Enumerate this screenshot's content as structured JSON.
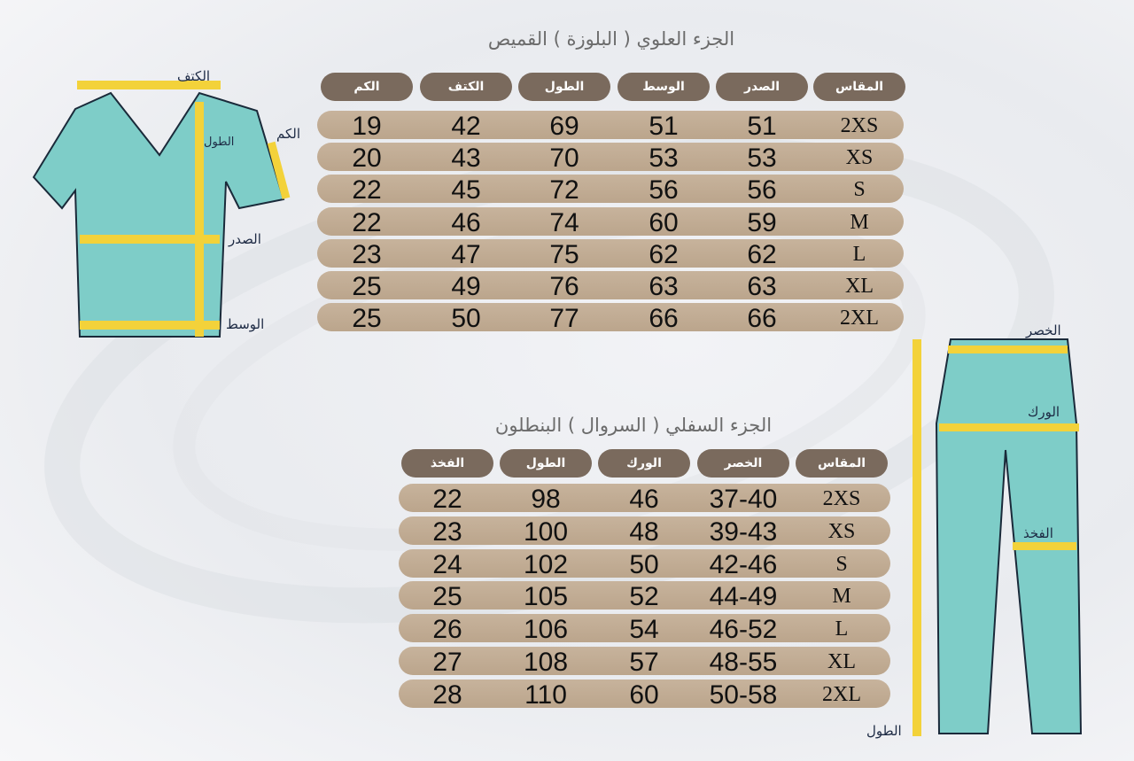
{
  "top": {
    "title": "الجزء العلوي ( البلوزة ) القميص",
    "headers": [
      "المقاس",
      "الصدر",
      "الوسط",
      "الطول",
      "الكتف",
      "الكم"
    ],
    "rows": [
      [
        "2XS",
        "51",
        "51",
        "69",
        "42",
        "19"
      ],
      [
        "XS",
        "53",
        "53",
        "70",
        "43",
        "20"
      ],
      [
        "S",
        "56",
        "56",
        "72",
        "45",
        "22"
      ],
      [
        "M",
        "59",
        "60",
        "74",
        "46",
        "22"
      ],
      [
        "L",
        "62",
        "62",
        "75",
        "47",
        "23"
      ],
      [
        "XL",
        "63",
        "63",
        "76",
        "49",
        "25"
      ],
      [
        "2XL",
        "66",
        "66",
        "77",
        "50",
        "25"
      ]
    ],
    "diagram_labels": {
      "shoulder": "الكتف",
      "sleeve": "الكم",
      "length": "الطول",
      "chest": "الصدر",
      "waist": "الوسط"
    }
  },
  "bottom": {
    "title": "الجزء السفلي ( السروال ) البنطلون",
    "headers": [
      "المقاس",
      "الخصر",
      "الورك",
      "الطول",
      "الفخذ"
    ],
    "rows": [
      [
        "2XS",
        "37-40",
        "46",
        "98",
        "22"
      ],
      [
        "XS",
        "39-43",
        "48",
        "100",
        "23"
      ],
      [
        "S",
        "42-46",
        "50",
        "102",
        "24"
      ],
      [
        "M",
        "44-49",
        "52",
        "105",
        "25"
      ],
      [
        "L",
        "46-52",
        "54",
        "106",
        "26"
      ],
      [
        "XL",
        "48-55",
        "57",
        "108",
        "27"
      ],
      [
        "2XL",
        "50-58",
        "60",
        "110",
        "28"
      ]
    ],
    "diagram_labels": {
      "waist": "الخصر",
      "hip": "الورك",
      "thigh": "الفخذ",
      "length": "الطول"
    }
  },
  "colors": {
    "header": "#7a6a5d",
    "row": "#c2ad95",
    "garment": "#7ecdc8",
    "tape": "#f3d23a"
  }
}
